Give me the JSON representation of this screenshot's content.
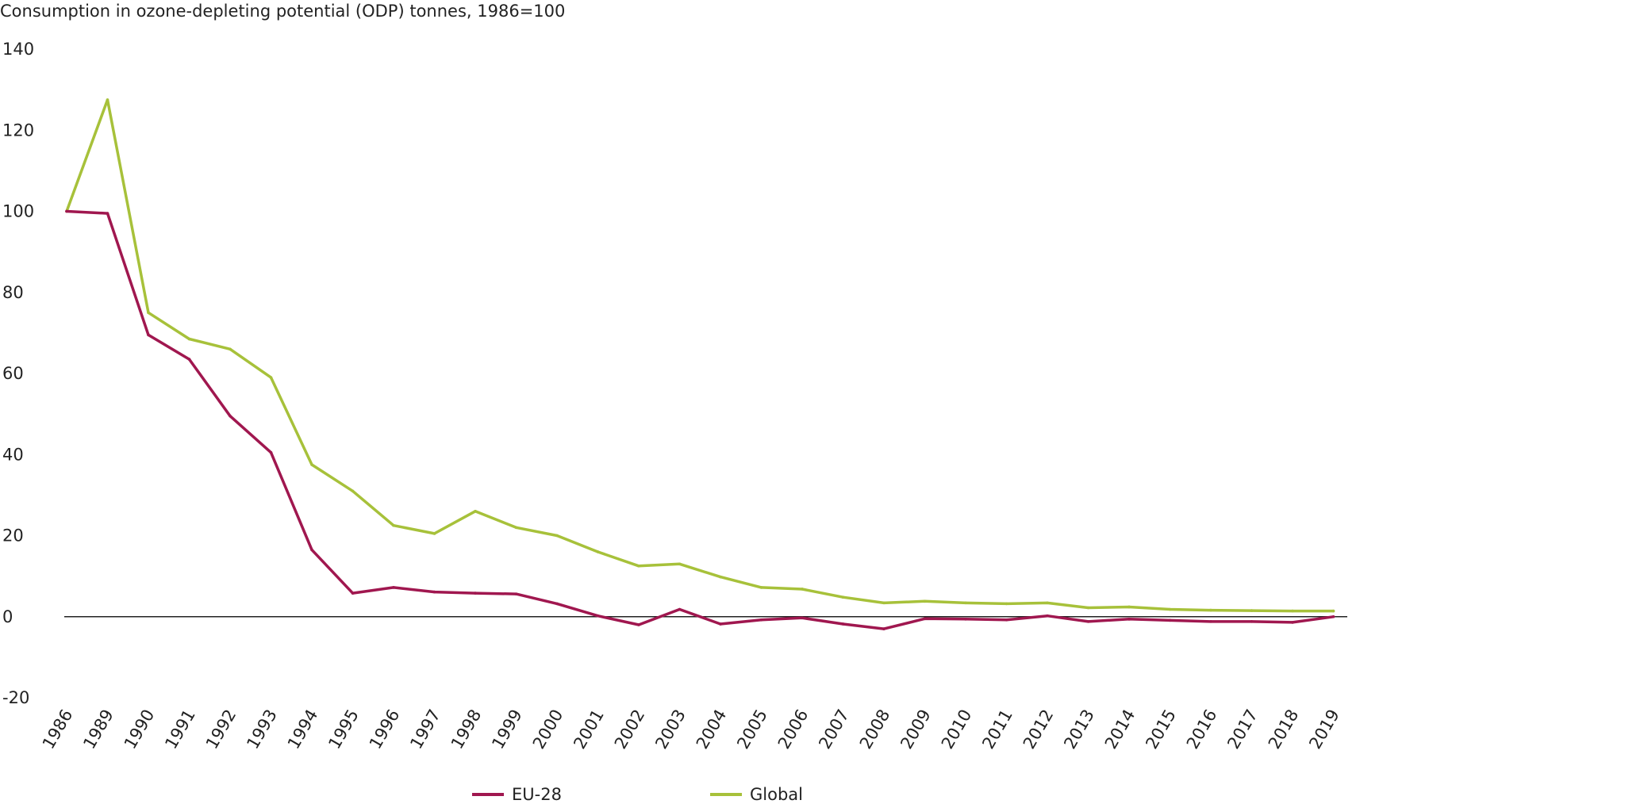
{
  "chart_data": {
    "type": "line",
    "title": "Consumption in ozone-depleting potential (ODP) tonnes, 1986=100",
    "xlabel": "",
    "ylabel": "",
    "categories": [
      "1986",
      "1989",
      "1990",
      "1991",
      "1992",
      "1993",
      "1994",
      "1995",
      "1996",
      "1997",
      "1998",
      "1999",
      "2000",
      "2001",
      "2002",
      "2003",
      "2004",
      "2005",
      "2006",
      "2007",
      "2008",
      "2009",
      "2010",
      "2011",
      "2012",
      "2013",
      "2014",
      "2015",
      "2016",
      "2017",
      "2018",
      "2019"
    ],
    "yticks": [
      140,
      120,
      100,
      80,
      60,
      40,
      20,
      0,
      -20
    ],
    "ylim": [
      -20,
      140
    ],
    "grid": false,
    "legend_position": "bottom",
    "series": [
      {
        "name": "EU-28",
        "color": "#a0174f",
        "values": [
          100,
          99.5,
          69.5,
          63.5,
          49.5,
          40.5,
          16.5,
          5.8,
          7.2,
          6.1,
          5.8,
          5.6,
          3.2,
          0.2,
          -2.0,
          1.8,
          -1.8,
          -0.8,
          -0.3,
          -1.8,
          -3.0,
          -0.5,
          -0.6,
          -0.8,
          0.2,
          -1.2,
          -0.6,
          -0.9,
          -1.2,
          -1.2,
          -1.4,
          0.0
        ]
      },
      {
        "name": "Global",
        "color": "#a7c13a",
        "values": [
          100,
          127.5,
          75,
          68.5,
          66,
          59,
          37.5,
          31,
          22.5,
          20.5,
          26,
          22,
          20,
          16,
          12.5,
          13,
          9.8,
          7.2,
          6.8,
          4.8,
          3.4,
          3.8,
          3.4,
          3.2,
          3.4,
          2.2,
          2.4,
          1.8,
          1.6,
          1.5,
          1.4,
          1.4
        ]
      }
    ]
  }
}
